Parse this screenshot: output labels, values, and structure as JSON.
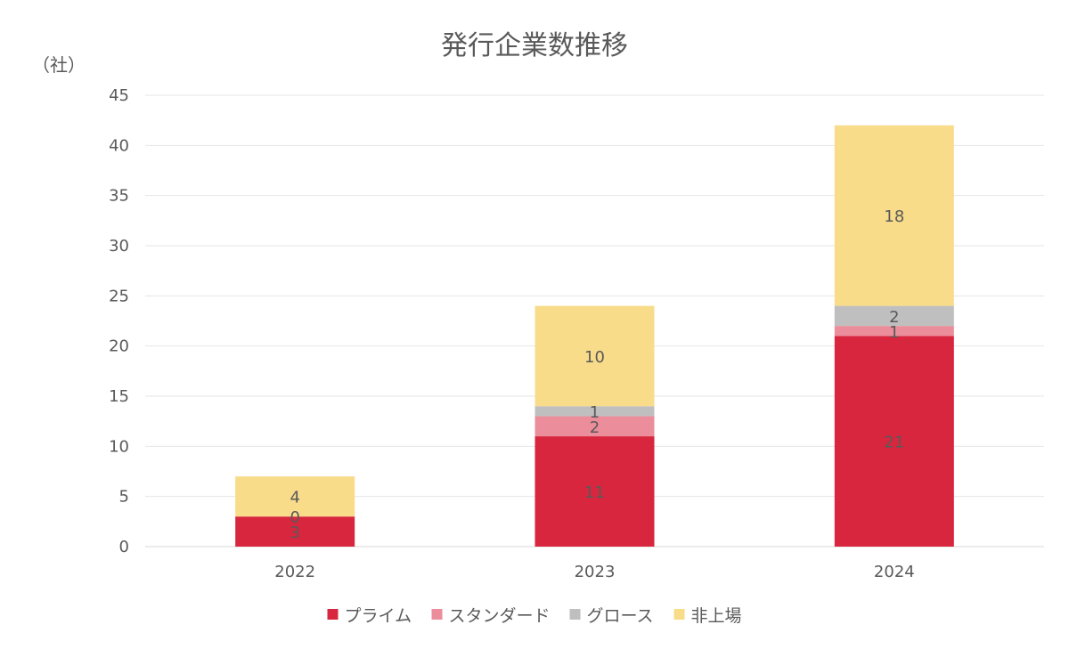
{
  "chart_data": {
    "type": "bar",
    "stacked": true,
    "title": "発行企業数推移",
    "unit_label": "（社）",
    "xlabel": "",
    "ylabel": "",
    "categories": [
      "2022",
      "2023",
      "2024"
    ],
    "ylim": [
      0,
      45
    ],
    "yticks": [
      0,
      5,
      10,
      15,
      20,
      25,
      30,
      35,
      40,
      45
    ],
    "grid": true,
    "legend_position": "bottom",
    "series": [
      {
        "name": "プライム",
        "color": "#D7263D",
        "values": [
          3,
          11,
          21
        ]
      },
      {
        "name": "スタンダード",
        "color": "#EB8D9A",
        "values": [
          0,
          2,
          1
        ]
      },
      {
        "name": "グロース",
        "color": "#BFBFBF",
        "values": [
          0,
          1,
          2
        ]
      },
      {
        "name": "非上場",
        "color": "#F8DC8A",
        "values": [
          4,
          10,
          18
        ]
      }
    ],
    "data_labels": [
      [
        "3",
        "11",
        "21"
      ],
      [
        "0",
        "2",
        "1"
      ],
      [
        "",
        "1",
        "2"
      ],
      [
        "4",
        "10",
        "18"
      ]
    ]
  }
}
